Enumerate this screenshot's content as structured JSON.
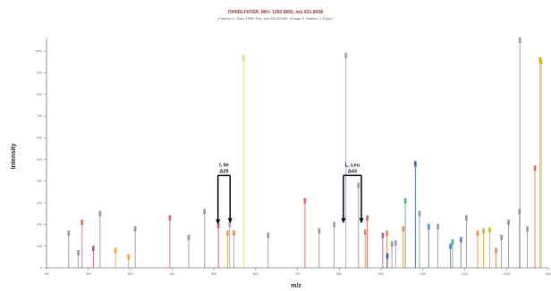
{
  "chart_data": {
    "type": "bar",
    "title": "DHRDLFKFER, MH+ 1260.6850, m/z 631.8438",
    "subtitle": "Fraction 2, Scan 1996, Exp. m/z 631.84390, Charge 2, Deltam -1.8 ppm",
    "xlabel": "m/z",
    "ylabel": "Intensity",
    "xlim": [
      100,
      1300
    ],
    "ylim": [
      0,
      1050
    ],
    "x_ticks": [
      "100",
      "200",
      "300",
      "400",
      "500",
      "600",
      "700",
      "800",
      "900",
      "1000",
      "1100",
      "1200",
      "1300"
    ],
    "y_ticks": [
      "0",
      "100",
      "200",
      "300",
      "400",
      "500",
      "600",
      "700",
      "800",
      "900",
      "1000"
    ],
    "grid": false,
    "annotations": [
      {
        "label": "I, Ile",
        "delta": "Δ29",
        "from_mz": 510,
        "to_mz": 539
      },
      {
        "label": "L, Leu",
        "delta": "Δ43",
        "from_mz": 810,
        "to_mz": 853
      }
    ],
    "series": [
      {
        "color": "#d9534f",
        "points": [
          [
            185,
            210
          ],
          [
            395,
            230
          ],
          [
            718,
            310
          ],
          [
            867,
            230
          ],
          [
            1268,
            460
          ]
        ]
      },
      {
        "color": "#e07a3a",
        "points": [
          [
            548,
            160
          ],
          [
            862,
            165
          ],
          [
            914,
            160
          ],
          [
            953,
            180
          ],
          [
            1131,
            160
          ],
          [
            1175,
            80
          ]
        ]
      },
      {
        "color": "#e0a020",
        "points": [
          [
            265,
            80
          ],
          [
            296,
            50
          ],
          [
            533,
            160
          ],
          [
            1145,
            170
          ],
          [
            1280,
            960
          ]
        ]
      },
      {
        "color": "#c8b400",
        "points": [
          [
            1160,
            175
          ],
          [
            1283,
            950
          ]
        ]
      },
      {
        "color": "#d8d860",
        "points": [
          [
            571,
            970
          ]
        ]
      },
      {
        "color": "#b04070",
        "points": [
          [
            212,
            90
          ],
          [
            511,
            195
          ],
          [
            904,
            150
          ]
        ]
      },
      {
        "color": "#9090c0",
        "points": [
          [
            538,
            200
          ],
          [
            816,
            980
          ],
          [
            935,
            115
          ]
        ]
      },
      {
        "color": "#4070b0",
        "points": [
          [
            1014,
            190
          ],
          [
            1066,
            100
          ],
          [
            1091,
            130
          ]
        ]
      },
      {
        "color": "#2050a0",
        "points": [
          [
            915,
            55
          ],
          [
            982,
            480
          ]
        ]
      },
      {
        "color": "#40a060",
        "points": [
          [
            958,
            310
          ],
          [
            1071,
            120
          ]
        ]
      },
      {
        "color": "#888888",
        "points": [
          [
            153,
            160
          ],
          [
            176,
            70
          ],
          [
            228,
            250
          ],
          [
            312,
            180
          ],
          [
            440,
            140
          ],
          [
            478,
            260
          ],
          [
            630,
            150
          ],
          [
            752,
            170
          ],
          [
            788,
            200
          ],
          [
            846,
            380
          ],
          [
            926,
            110
          ],
          [
            992,
            250
          ],
          [
            1036,
            190
          ],
          [
            1104,
            230
          ],
          [
            1188,
            140
          ],
          [
            1205,
            210
          ],
          [
            1231,
            260
          ],
          [
            1250,
            180
          ],
          [
            1232,
            1050
          ]
        ]
      }
    ]
  }
}
